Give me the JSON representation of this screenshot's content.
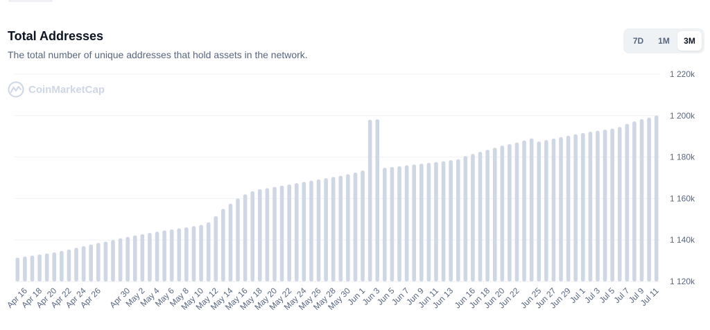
{
  "header": {
    "title": "Total Addresses",
    "subtitle": "The total number of unique addresses that hold assets in the network."
  },
  "range": {
    "options": [
      "7D",
      "1M",
      "3M"
    ],
    "selected": "3M"
  },
  "watermark": {
    "text": "CoinMarketCap"
  },
  "colors": {
    "bar": "#cfd6e4",
    "grid": "#eff2f5",
    "text": "#58667e",
    "title": "#0d1421"
  },
  "chart_data": {
    "type": "bar",
    "title": "Total Addresses",
    "xlabel": "",
    "ylabel": "",
    "ylim": [
      1120000,
      1220000
    ],
    "yticks": [
      "1 120k",
      "1 140k",
      "1 160k",
      "1 180k",
      "1 200k",
      "1 220k"
    ],
    "grid": true,
    "categories": [
      "Apr 15",
      "Apr 16",
      "Apr 17",
      "Apr 18",
      "Apr 19",
      "Apr 20",
      "Apr 21",
      "Apr 22",
      "Apr 23",
      "Apr 24",
      "Apr 25",
      "Apr 26",
      "Apr 27",
      "Apr 28",
      "Apr 29",
      "Apr 30",
      "May 1",
      "May 2",
      "May 3",
      "May 4",
      "May 5",
      "May 6",
      "May 7",
      "May 8",
      "May 9",
      "May 10",
      "May 11",
      "May 12",
      "May 13",
      "May 14",
      "May 15",
      "May 16",
      "May 17",
      "May 18",
      "May 19",
      "May 20",
      "May 21",
      "May 22",
      "May 23",
      "May 24",
      "May 25",
      "May 26",
      "May 27",
      "May 28",
      "May 29",
      "May 30",
      "May 31",
      "Jun 1",
      "Jun 2",
      "Jun 3",
      "Jun 4",
      "Jun 5",
      "Jun 6",
      "Jun 7",
      "Jun 8",
      "Jun 9",
      "Jun 10",
      "Jun 11",
      "Jun 12",
      "Jun 13",
      "Jun 14",
      "Jun 15",
      "Jun 16",
      "Jun 17",
      "Jun 18",
      "Jun 19",
      "Jun 20",
      "Jun 21",
      "Jun 22",
      "Jun 23",
      "Jun 24",
      "Jun 25",
      "Jun 26",
      "Jun 27",
      "Jun 28",
      "Jun 29",
      "Jun 30",
      "Jul 1",
      "Jul 2",
      "Jul 3",
      "Jul 4",
      "Jul 5",
      "Jul 6",
      "Jul 7",
      "Jul 8",
      "Jul 9",
      "Jul 10",
      "Jul 11"
    ],
    "values": [
      1131500,
      1132000,
      1132500,
      1133000,
      1133500,
      1134000,
      1134700,
      1135400,
      1136200,
      1137000,
      1137800,
      1138600,
      1139200,
      1140000,
      1140800,
      1141500,
      1142200,
      1142800,
      1143400,
      1144000,
      1144600,
      1145100,
      1145600,
      1146100,
      1146700,
      1147300,
      1148500,
      1151500,
      1155000,
      1157500,
      1160000,
      1162000,
      1163500,
      1164500,
      1165000,
      1165600,
      1166200,
      1166800,
      1167400,
      1168000,
      1168600,
      1169200,
      1169800,
      1170400,
      1171000,
      1171700,
      1172500,
      1173500,
      1198000,
      1198200,
      1174800,
      1175200,
      1175600,
      1176000,
      1176400,
      1176800,
      1177200,
      1177600,
      1178000,
      1178500,
      1179000,
      1180500,
      1181500,
      1182500,
      1183500,
      1184500,
      1185500,
      1186200,
      1187000,
      1188000,
      1189000,
      1187500,
      1188200,
      1188900,
      1189600,
      1190300,
      1191000,
      1191600,
      1192200,
      1192700,
      1193200,
      1193700,
      1194500,
      1196000,
      1197200,
      1198300,
      1199000,
      1200000
    ],
    "xtick_labels": [
      "Apr 16",
      "Apr 18",
      "Apr 20",
      "Apr 22",
      "Apr 24",
      "Apr 26",
      "Apr 30",
      "May 2",
      "May 4",
      "May 6",
      "May 8",
      "May 10",
      "May 12",
      "May 14",
      "May 16",
      "May 18",
      "May 20",
      "May 22",
      "May 24",
      "May 26",
      "May 28",
      "May 30",
      "Jun 1",
      "Jun 3",
      "Jun 5",
      "Jun 7",
      "Jun 9",
      "Jun 11",
      "Jun 13",
      "Jun 16",
      "Jun 18",
      "Jun 20",
      "Jun 22",
      "Jun 25",
      "Jun 27",
      "Jun 29",
      "Jul 1",
      "Jul 3",
      "Jul 5",
      "Jul 7",
      "Jul 9",
      "Jul 11"
    ]
  }
}
